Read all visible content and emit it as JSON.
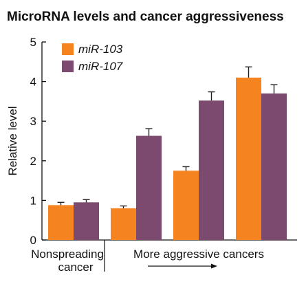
{
  "chart_data": {
    "type": "bar",
    "title": "MicroRNA levels and cancer aggressiveness",
    "ylabel": "Relative level",
    "ylim": [
      0,
      5
    ],
    "yticks": [
      0,
      1,
      2,
      3,
      4,
      5
    ],
    "grid": false,
    "legend_position": "top-left",
    "error_bars": true,
    "group_labels": [
      "Nonspreading cancer",
      "More aggressive cancers"
    ],
    "group_label_lines": [
      [
        "Nonspreading",
        "cancer"
      ],
      [
        "More aggressive cancers"
      ]
    ],
    "groups": 4,
    "series": [
      {
        "name": "miR-103",
        "color": "#F5831F",
        "values": [
          0.88,
          0.8,
          1.75,
          4.1
        ],
        "errors": [
          0.07,
          0.06,
          0.1,
          0.27
        ]
      },
      {
        "name": "miR-107",
        "color": "#7B4A6E",
        "values": [
          0.95,
          2.63,
          3.52,
          3.7
        ],
        "errors": [
          0.07,
          0.18,
          0.22,
          0.22
        ]
      }
    ]
  }
}
